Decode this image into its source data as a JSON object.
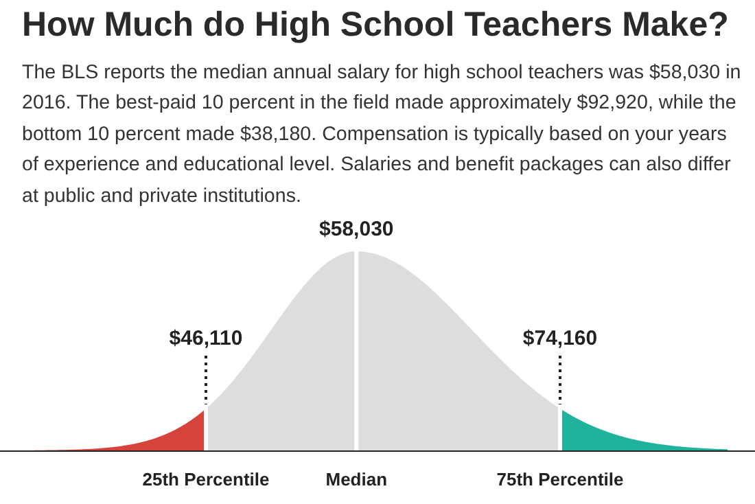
{
  "chart_data": {
    "type": "other",
    "title": "How Much do High School Teachers Make?",
    "subtitle": "The BLS reports the median annual salary for high school teachers was $58,030 in 2016. The best-paid 10 percent in the field made approximately $92,920, while the bottom 10 percent made $38,180. Compensation is typically based on your years of experience and educational level. Salaries and benefit packages can also differ at public and private institutions.",
    "categories": [
      "25th Percentile",
      "Median",
      "75th Percentile"
    ],
    "values": [
      46110,
      58030,
      74160
    ],
    "value_labels": [
      "$46,110",
      "$58,030",
      "$74,160"
    ],
    "colors": [
      "#d5433a",
      "#dddddd",
      "#1fb39b"
    ]
  }
}
